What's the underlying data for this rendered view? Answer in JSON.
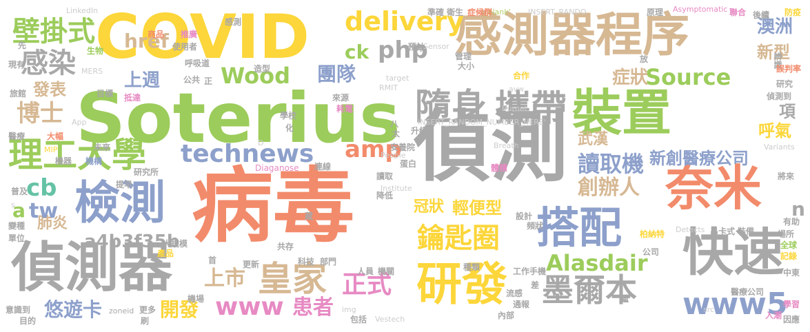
{
  "words": [
    {
      "id": "w1",
      "text": "病毒",
      "color": "#f28b6b"
    },
    {
      "id": "w2",
      "text": "偵測",
      "color": "#a8a8a8"
    },
    {
      "id": "w3",
      "text": "Soterius",
      "color": "#9ccc5b"
    },
    {
      "id": "w4",
      "text": "COVID",
      "color": "#fcd63a"
    },
    {
      "id": "w5",
      "text": "感測器程序",
      "color": "#d6b893"
    },
    {
      "id": "w6",
      "text": "隨身",
      "color": "#a8a8a8"
    },
    {
      "id": "w7",
      "text": "攜帶",
      "color": "#a8a8a8"
    },
    {
      "id": "w8",
      "text": "裝置",
      "color": "#9ccc5b"
    },
    {
      "id": "w9",
      "text": "檢測",
      "color": "#8da0cb"
    },
    {
      "id": "w10",
      "text": "偵測器",
      "color": "#a8a8a8"
    },
    {
      "id": "w11",
      "text": "奈米",
      "color": "#f28b6b"
    },
    {
      "id": "w12",
      "text": "搭配",
      "color": "#8da0cb"
    },
    {
      "id": "w13",
      "text": "快速",
      "color": "#a8a8a8"
    },
    {
      "id": "w14",
      "text": "研發",
      "color": "#fcd63a"
    },
    {
      "id": "w15",
      "text": "理工大學",
      "color": "#9ccc5b"
    },
    {
      "id": "w16",
      "text": "technews",
      "color": "#8da0cb"
    },
    {
      "id": "w17",
      "text": "鑰匙圈",
      "color": "#fcd63a"
    },
    {
      "id": "w18",
      "text": "墨爾本",
      "color": "#a8a8a8"
    },
    {
      "id": "w19",
      "text": "皇家",
      "color": "#d6b893"
    },
    {
      "id": "w20",
      "text": "www5",
      "color": "#8da0cb"
    },
    {
      "id": "w21",
      "text": "delivery",
      "color": "#fcd63a"
    },
    {
      "id": "w22",
      "text": "Wood",
      "color": "#9ccc5b"
    },
    {
      "id": "w23",
      "text": "Source",
      "color": "#9ccc5b"
    },
    {
      "id": "w24",
      "text": "壁掛式",
      "color": "#9ccc5b"
    },
    {
      "id": "w25",
      "text": "感染",
      "color": "#a8a8a8"
    },
    {
      "id": "w26",
      "text": "博士",
      "color": "#d6b893"
    },
    {
      "id": "w27",
      "text": "href",
      "color": "#d6b893"
    },
    {
      "id": "w28",
      "text": "php",
      "color": "#a8a8a8"
    },
    {
      "id": "w29",
      "text": "ck",
      "color": "#9ccc5b"
    },
    {
      "id": "w30",
      "text": "amp",
      "color": "#f28b6b"
    },
    {
      "id": "w31",
      "text": "團隊",
      "color": "#8da0cb"
    },
    {
      "id": "w32",
      "text": "讀取機",
      "color": "#8da0cb"
    },
    {
      "id": "w33",
      "text": "新創醫療公司",
      "color": "#8da0cb"
    },
    {
      "id": "w34",
      "text": "創辦人",
      "color": "#d6b893"
    },
    {
      "id": "w35",
      "text": "Alasdair",
      "color": "#9ccc5b"
    },
    {
      "id": "w36",
      "text": "上市",
      "color": "#d6b893"
    },
    {
      "id": "w37",
      "text": "正式",
      "color": "#e78ac3"
    },
    {
      "id": "w38",
      "text": "www",
      "color": "#e78ac3"
    },
    {
      "id": "w39",
      "text": "患者",
      "color": "#e78ac3"
    },
    {
      "id": "w40",
      "text": "悠遊卡",
      "color": "#8da0cb"
    },
    {
      "id": "w41",
      "text": "開發",
      "color": "#fcd63a"
    },
    {
      "id": "w42",
      "text": "a4b3f35b",
      "color": "#a8a8a8"
    },
    {
      "id": "w43",
      "text": "輕便型",
      "color": "#fcd63a"
    },
    {
      "id": "w44",
      "text": "冠狀",
      "color": "#fcd63a"
    },
    {
      "id": "w45",
      "text": "肺炎",
      "color": "#d6b893"
    },
    {
      "id": "w46",
      "text": "cb",
      "color": "#66c2a5"
    },
    {
      "id": "w47",
      "text": "tw",
      "color": "#8da0cb"
    },
    {
      "id": "w48",
      "text": "a",
      "color": "#9ccc5b"
    },
    {
      "id": "w49",
      "text": "上週",
      "color": "#8da0cb"
    },
    {
      "id": "w50",
      "text": "發表",
      "color": "#d6b893"
    },
    {
      "id": "w51",
      "text": "澳洲",
      "color": "#8da0cb"
    },
    {
      "id": "w52",
      "text": "新型",
      "color": "#d6b893"
    },
    {
      "id": "w53",
      "text": "症狀",
      "color": "#d6b893"
    },
    {
      "id": "w54",
      "text": "項",
      "color": "#a8a8a8"
    },
    {
      "id": "w55",
      "text": "呼氣",
      "color": "#fcd63a"
    },
    {
      "id": "w56",
      "text": "武漢",
      "color": "#d6b893"
    },
    {
      "id": "w57",
      "text": "n",
      "color": "#a8a8a8"
    },
    {
      "id": "w58",
      "text": "LinkedIn",
      "color": "#cccccc"
    },
    {
      "id": "w59",
      "text": "_blank'",
      "color": "#b5cf6b"
    },
    {
      "id": "w60",
      "text": "INSERT_RANDO",
      "color": "#cccccc"
    },
    {
      "id": "w61",
      "text": "Asymptomatic",
      "color": "#e78ac3"
    },
    {
      "id": "w62",
      "text": "INSERT_RANDOM_NUMBER_HERE'",
      "color": "#cccccc"
    },
    {
      "id": "w63",
      "text": "Diaganose",
      "color": "#e78ac3"
    },
    {
      "id": "w64",
      "text": "Institute",
      "color": "#cccccc"
    },
    {
      "id": "w65",
      "text": "People",
      "color": "#cccccc"
    },
    {
      "id": "w66",
      "text": "Breath",
      "color": "#cccccc"
    },
    {
      "id": "w67",
      "text": "Burnet",
      "color": "#cccccc"
    },
    {
      "id": "w68",
      "text": "Variants",
      "color": "#cccccc"
    },
    {
      "id": "w69",
      "text": "Detects",
      "color": "#cccccc"
    },
    {
      "id": "w70",
      "text": "Vestech",
      "color": "#cccccc"
    },
    {
      "id": "w71",
      "text": "zoneid",
      "color": "#a8a8a8"
    },
    {
      "id": "w72",
      "text": "RMIT",
      "color": "#cccccc"
    },
    {
      "id": "w73",
      "text": "MERS",
      "color": "#cccccc"
    },
    {
      "id": "w74",
      "text": "App",
      "color": "#cccccc"
    },
    {
      "id": "w75",
      "text": "MIP",
      "color": "#fcd63a"
    },
    {
      "id": "w76",
      "text": "target",
      "color": "#cccccc"
    },
    {
      "id": "w77",
      "text": "Sensor",
      "color": "#cccccc"
    },
    {
      "id": "w78",
      "text": "img",
      "color": "#cccccc"
    },
    {
      "id": "w79",
      "text": "src",
      "color": "#cccccc"
    },
    {
      "id": "w80",
      "text": "avw",
      "color": "#cccccc"
    },
    {
      "id": "w81",
      "text": "D",
      "color": "#cccccc"
    },
    {
      "id": "w82",
      "text": "s",
      "color": "#cccccc"
    },
    {
      "id": "w83",
      "text": "準確",
      "color": "#a8a8a8"
    },
    {
      "id": "w84",
      "text": "衛生",
      "color": "#a8a8a8"
    },
    {
      "id": "w85",
      "text": "症候群",
      "color": "#f28b6b"
    },
    {
      "id": "w86",
      "text": "原理",
      "color": "#a8a8a8"
    },
    {
      "id": "w87",
      "text": "聯合",
      "color": "#e78ac3"
    },
    {
      "id": "w88",
      "text": "後續",
      "color": "#a8a8a8"
    },
    {
      "id": "w89",
      "text": "防疫",
      "color": "#fcd63a"
    },
    {
      "id": "w90",
      "text": "辨識",
      "color": "#a8a8a8"
    },
    {
      "id": "w91",
      "text": "誤判率",
      "color": "#f28b6b"
    },
    {
      "id": "w92",
      "text": "研究",
      "color": "#a8a8a8"
    },
    {
      "id": "w93",
      "text": "偵測到",
      "color": "#a8a8a8"
    },
    {
      "id": "w94",
      "text": "感測",
      "color": "#a8a8a8"
    },
    {
      "id": "w95",
      "text": "商品",
      "color": "#f28b6b"
    },
    {
      "id": "w96",
      "text": "推廣",
      "color": "#e78ac3"
    },
    {
      "id": "w97",
      "text": "使用者",
      "color": "#a8a8a8"
    },
    {
      "id": "w98",
      "text": "生物",
      "color": "#9ccc5b"
    },
    {
      "id": "w99",
      "text": "呼吸道",
      "color": "#a8a8a8"
    },
    {
      "id": "w100",
      "text": "造型",
      "color": "#a8a8a8"
    },
    {
      "id": "w101",
      "text": "年",
      "color": "#a8a8a8"
    },
    {
      "id": "w102",
      "text": "預計",
      "color": "#a8a8a8"
    },
    {
      "id": "w103",
      "text": "管理",
      "color": "#a8a8a8"
    },
    {
      "id": "w104",
      "text": "大小",
      "color": "#a8a8a8"
    },
    {
      "id": "w105",
      "text": "合作",
      "color": "#fcd63a"
    },
    {
      "id": "w106",
      "text": "公共",
      "color": "#a8a8a8"
    },
    {
      "id": "w107",
      "text": "旅館",
      "color": "#a8a8a8"
    },
    {
      "id": "w108",
      "text": "現有",
      "color": "#a8a8a8"
    },
    {
      "id": "w109",
      "text": "先",
      "color": "#a8a8a8"
    },
    {
      "id": "w110",
      "text": "目標",
      "color": "#a8a8a8"
    },
    {
      "id": "w111",
      "text": "抵達",
      "color": "#e78ac3"
    },
    {
      "id": "w112",
      "text": "來源",
      "color": "#a8a8a8"
    },
    {
      "id": "w113",
      "text": "學校",
      "color": "#a8a8a8"
    },
    {
      "id": "w114",
      "text": "耗電",
      "color": "#e78ac3"
    },
    {
      "id": "w115",
      "text": "醫療",
      "color": "#a8a8a8"
    },
    {
      "id": "w116",
      "text": "大幅",
      "color": "#f28b6b"
    },
    {
      "id": "w117",
      "text": "未來",
      "color": "#a8a8a8"
    },
    {
      "id": "w118",
      "text": "機器",
      "color": "#a8a8a8"
    },
    {
      "id": "w119",
      "text": "機構",
      "color": "#8da0cb"
    },
    {
      "id": "w120",
      "text": "研究所",
      "color": "#a8a8a8"
    },
    {
      "id": "w121",
      "text": "安養院",
      "color": "#a8a8a8"
    },
    {
      "id": "w122",
      "text": "蛋白",
      "color": "#a8a8a8"
    },
    {
      "id": "w123",
      "text": "連線",
      "color": "#a8a8a8"
    },
    {
      "id": "w124",
      "text": "升級",
      "color": "#a8a8a8"
    },
    {
      "id": "w125",
      "text": "讀取",
      "color": "#a8a8a8"
    },
    {
      "id": "w126",
      "text": "體積",
      "color": "#e78ac3"
    },
    {
      "id": "w127",
      "text": "將來",
      "color": "#a8a8a8"
    },
    {
      "id": "w128",
      "text": "普及",
      "color": "#a8a8a8"
    },
    {
      "id": "w129",
      "text": "提早",
      "color": "#a8a8a8"
    },
    {
      "id": "w130",
      "text": "變種",
      "color": "#a8a8a8"
    },
    {
      "id": "w131",
      "text": "單位",
      "color": "#a8a8a8"
    },
    {
      "id": "w132",
      "text": "大規模",
      "color": "#a8a8a8"
    },
    {
      "id": "w133",
      "text": "降低",
      "color": "#a8a8a8"
    },
    {
      "id": "w134",
      "text": "設計",
      "color": "#a8a8a8"
    },
    {
      "id": "w135",
      "text": "頻狀",
      "color": "#a8a8a8"
    },
    {
      "id": "w136",
      "text": "柏納特",
      "color": "#fcd63a"
    },
    {
      "id": "w137",
      "text": "吊卡式",
      "color": "#a8a8a8"
    },
    {
      "id": "w138",
      "text": "裝備",
      "color": "#a8a8a8"
    },
    {
      "id": "w139",
      "text": "有助",
      "color": "#a8a8a8"
    },
    {
      "id": "w140",
      "text": "場所",
      "color": "#a8a8a8"
    },
    {
      "id": "w141",
      "text": "全球",
      "color": "#9ccc5b"
    },
    {
      "id": "w142",
      "text": "記錄",
      "color": "#fcd63a"
    },
    {
      "id": "w143",
      "text": "公司",
      "color": "#a8a8a8"
    },
    {
      "id": "w144",
      "text": "首",
      "color": "#a8a8a8"
    },
    {
      "id": "w145",
      "text": "產品",
      "color": "#fcd63a"
    },
    {
      "id": "w146",
      "text": "共存",
      "color": "#a8a8a8"
    },
    {
      "id": "w147",
      "text": "更新",
      "color": "#a8a8a8"
    },
    {
      "id": "w148",
      "text": "科技",
      "color": "#a8a8a8"
    },
    {
      "id": "w149",
      "text": "部門",
      "color": "#a8a8a8"
    },
    {
      "id": "w150",
      "text": "人員",
      "color": "#a8a8a8"
    },
    {
      "id": "w151",
      "text": "機關",
      "color": "#a8a8a8"
    },
    {
      "id": "w152",
      "text": "種類",
      "color": "#a8a8a8"
    },
    {
      "id": "w153",
      "text": "手機",
      "color": "#a8a8a8"
    },
    {
      "id": "w154",
      "text": "工作",
      "color": "#a8a8a8"
    },
    {
      "id": "w155",
      "text": "流感",
      "color": "#a8a8a8"
    },
    {
      "id": "w156",
      "text": "通報",
      "color": "#a8a8a8"
    },
    {
      "id": "w157",
      "text": "差",
      "color": "#a8a8a8"
    },
    {
      "id": "w158",
      "text": "中東",
      "color": "#a8a8a8"
    },
    {
      "id": "w159",
      "text": "醫療公司",
      "color": "#a8a8a8"
    },
    {
      "id": "w160",
      "text": "學習",
      "color": "#e78ac3"
    },
    {
      "id": "w161",
      "text": "入潮",
      "color": "#e78ac3"
    },
    {
      "id": "w162",
      "text": "因應",
      "color": "#a8a8a8"
    },
    {
      "id": "w163",
      "text": "意識到",
      "color": "#a8a8a8"
    },
    {
      "id": "w164",
      "text": "目的",
      "color": "#a8a8a8"
    },
    {
      "id": "w165",
      "text": "更多",
      "color": "#a8a8a8"
    },
    {
      "id": "w166",
      "text": "刷",
      "color": "#a8a8a8"
    },
    {
      "id": "w167",
      "text": "機場",
      "color": "#a8a8a8"
    },
    {
      "id": "w168",
      "text": "包括",
      "color": "#a8a8a8"
    },
    {
      "id": "w169",
      "text": "內部",
      "color": "#a8a8a8"
    },
    {
      "id": "w170",
      "text": "正",
      "color": "#a8a8a8"
    },
    {
      "id": "w171",
      "text": "化",
      "color": "#a8a8a8"
    },
    {
      "id": "w172",
      "text": "太",
      "color": "#a8a8a8"
    },
    {
      "id": "w173",
      "text": "八",
      "color": "#a8a8a8"
    },
    {
      "id": "w174",
      "text": "蔵",
      "color": "#a8a8a8"
    },
    {
      "id": "w175",
      "text": "放",
      "color": "#a8a8a8"
    },
    {
      "id": "w176",
      "text": "繼",
      "color": "#a8a8a8"
    }
  ]
}
